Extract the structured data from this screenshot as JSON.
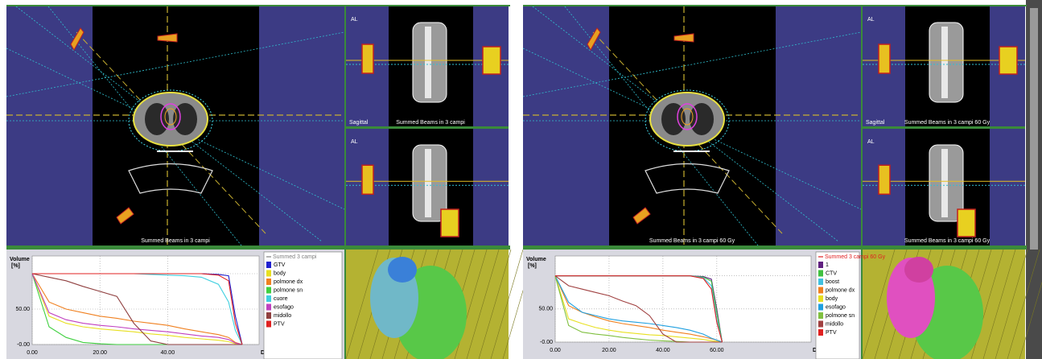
{
  "views": [
    {
      "orientation": "AL",
      "axial_caption": "Summed Beams in 3 campi",
      "sagittal_name": "Sagittal",
      "sagittal_caption": "Summed Beams in 3 campi"
    },
    {
      "orientation": "AL",
      "axial_caption": "Summed Beams in 3 campi 60 Gy",
      "sagittal_name": "Sagittal",
      "sagittal_caption": "Summed Beams in 3 campi 60 Gy",
      "coronal_caption": "Summed Beams in 3 campi 60 Gy"
    }
  ],
  "chart_data": [
    {
      "type": "line",
      "legend_title": "Summed 3 campi",
      "legend_title_color": "#808080",
      "y_label": "Volume",
      "y_unit": "[%]",
      "x_label": "Dose [Gy]",
      "x": [
        0,
        5,
        10,
        15,
        20,
        25,
        30,
        35,
        40,
        45,
        50,
        55,
        58,
        60,
        62
      ],
      "xlim": [
        0,
        67
      ],
      "xticks": [
        {
          "value": 0,
          "label": "0.00"
        },
        {
          "value": 20,
          "label": "20.00"
        },
        {
          "value": 40,
          "label": "40.00"
        }
      ],
      "ylim": [
        0,
        125
      ],
      "yticks": [
        {
          "value": 0,
          "label": "-0.00"
        },
        {
          "value": 50,
          "label": "50.00"
        },
        {
          "value": 100,
          "label": "100.00"
        }
      ],
      "series": [
        {
          "name": "GTV",
          "color": "#2020d0",
          "values": [
            100,
            100,
            100,
            100,
            100,
            100,
            100,
            100,
            100,
            100,
            100,
            99,
            97,
            40,
            0
          ]
        },
        {
          "name": "body",
          "color": "#e8e020",
          "values": [
            100,
            40,
            30,
            25,
            22,
            20,
            18,
            15,
            13,
            10,
            8,
            6,
            4,
            1,
            0
          ]
        },
        {
          "name": "polmone dx",
          "color": "#f08020",
          "values": [
            100,
            60,
            50,
            45,
            40,
            37,
            33,
            30,
            27,
            22,
            18,
            14,
            10,
            3,
            0
          ]
        },
        {
          "name": "polmone sn",
          "color": "#40d040",
          "values": [
            100,
            25,
            10,
            3,
            1,
            0,
            0,
            0,
            0,
            0,
            0,
            0,
            0,
            0,
            0
          ]
        },
        {
          "name": "cuore",
          "color": "#40d0e0",
          "values": [
            100,
            100,
            100,
            100,
            100,
            100,
            100,
            99,
            98,
            97,
            95,
            85,
            60,
            20,
            0
          ]
        },
        {
          "name": "esofago",
          "color": "#c040c0",
          "values": [
            100,
            45,
            35,
            30,
            27,
            25,
            22,
            20,
            18,
            15,
            12,
            10,
            7,
            2,
            0
          ]
        },
        {
          "name": "midollo",
          "color": "#904040",
          "values": [
            100,
            95,
            90,
            82,
            75,
            68,
            30,
            5,
            0,
            0,
            0,
            0,
            0,
            0,
            0
          ]
        },
        {
          "name": "PTV",
          "color": "#e02020",
          "values": [
            100,
            100,
            100,
            100,
            100,
            100,
            100,
            100,
            100,
            100,
            100,
            98,
            90,
            30,
            0
          ]
        }
      ]
    },
    {
      "type": "line",
      "legend_title": "Summed 3 campi 60 Gy",
      "legend_title_color": "#e02020",
      "y_label": "Volume",
      "y_unit": "[%]",
      "x_label": "Dose [Gy]",
      "x": [
        0,
        5,
        10,
        15,
        20,
        25,
        30,
        35,
        40,
        45,
        50,
        55,
        58,
        60,
        62
      ],
      "xlim": [
        0,
        95
      ],
      "xticks": [
        {
          "value": 0,
          "label": "0.00"
        },
        {
          "value": 20,
          "label": "20.00"
        },
        {
          "value": 40,
          "label": "40.00"
        },
        {
          "value": 60,
          "label": "60.00"
        }
      ],
      "ylim": [
        0,
        130
      ],
      "yticks": [
        {
          "value": 0,
          "label": "-0.00"
        },
        {
          "value": 50,
          "label": "50.00"
        },
        {
          "value": 100,
          "label": "100.00"
        }
      ],
      "series": [
        {
          "name": "1",
          "color": "#602080",
          "values": [
            100,
            100,
            100,
            100,
            100,
            100,
            100,
            100,
            100,
            100,
            100,
            99,
            95,
            50,
            0
          ]
        },
        {
          "name": "CTV",
          "color": "#40c040",
          "values": [
            100,
            100,
            100,
            100,
            100,
            100,
            100,
            100,
            100,
            100,
            100,
            98,
            92,
            45,
            0
          ]
        },
        {
          "name": "boost",
          "color": "#40c0e0",
          "values": [
            100,
            100,
            100,
            100,
            100,
            100,
            100,
            100,
            100,
            100,
            100,
            97,
            85,
            35,
            0
          ]
        },
        {
          "name": "polmone dx",
          "color": "#f08020",
          "values": [
            100,
            55,
            45,
            38,
            32,
            28,
            25,
            22,
            18,
            15,
            12,
            8,
            5,
            3,
            0
          ]
        },
        {
          "name": "body",
          "color": "#e8e020",
          "values": [
            100,
            35,
            28,
            22,
            18,
            15,
            13,
            11,
            10,
            8,
            6,
            4,
            2,
            1,
            0
          ]
        },
        {
          "name": "esofago",
          "color": "#20a0e0",
          "values": [
            100,
            60,
            45,
            40,
            35,
            32,
            30,
            28,
            25,
            22,
            18,
            12,
            6,
            3,
            0
          ]
        },
        {
          "name": "polmone sn",
          "color": "#80c040",
          "values": [
            100,
            25,
            15,
            12,
            10,
            7,
            5,
            3,
            2,
            1,
            0,
            0,
            0,
            0,
            0
          ]
        },
        {
          "name": "midollo",
          "color": "#a04040",
          "values": [
            100,
            85,
            80,
            75,
            70,
            62,
            55,
            40,
            12,
            0,
            0,
            0,
            0,
            0,
            0
          ]
        },
        {
          "name": "PTV",
          "color": "#e02020",
          "values": [
            100,
            100,
            100,
            100,
            100,
            100,
            100,
            100,
            100,
            100,
            100,
            96,
            80,
            30,
            0
          ]
        }
      ]
    }
  ]
}
